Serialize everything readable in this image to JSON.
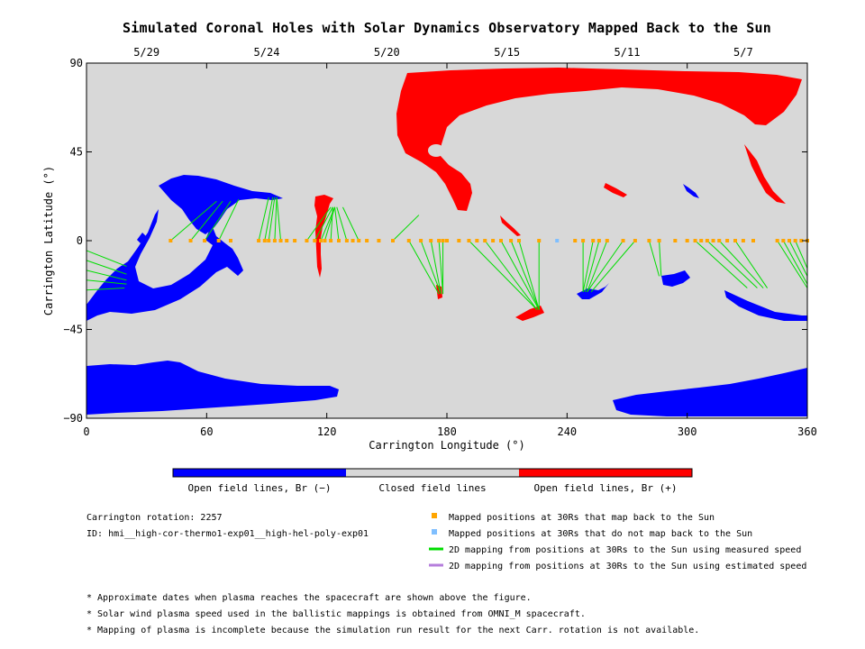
{
  "chart_data": {
    "type": "map",
    "title": "Simulated Coronal Holes with Solar Dynamics Observatory Mapped Back to the Sun",
    "xlabel": "Carrington Longitude (°)",
    "ylabel": "Carrington Latitude (°)",
    "xlim": [
      0,
      360
    ],
    "ylim": [
      -90,
      90
    ],
    "x_ticks": [
      0,
      60,
      120,
      180,
      240,
      300,
      360
    ],
    "y_ticks": [
      -90,
      -45,
      0,
      45,
      90
    ],
    "y_tick_labels": [
      "−90",
      "−45",
      "0",
      "45",
      "90"
    ],
    "top_dates": [
      {
        "label": "5/29",
        "lon": 30
      },
      {
        "label": "5/24",
        "lon": 90
      },
      {
        "label": "5/20",
        "lon": 150
      },
      {
        "label": "5/15",
        "lon": 210
      },
      {
        "label": "5/11",
        "lon": 270
      },
      {
        "label": "5/7",
        "lon": 328
      }
    ],
    "colors": {
      "open_negative": "#0000ff",
      "closed": "#d8d8d8",
      "open_positive": "#ff0000",
      "mapped": "#ffa500",
      "unmapped": "#7fbfff",
      "measured_line": "#00dd00",
      "estimated_line": "#b57edc"
    },
    "colorbar": [
      {
        "label": "Open field lines, Br (−)",
        "color": "#0000ff"
      },
      {
        "label": "Closed field lines",
        "color": "#d8d8d8"
      },
      {
        "label": "Open field lines, Br (+)",
        "color": "#ff0000"
      }
    ],
    "mapped_points_lon": [
      42,
      52,
      59,
      66,
      72,
      86,
      89,
      91,
      94,
      97,
      100,
      104,
      110,
      114,
      117,
      119,
      122,
      126,
      130,
      133,
      136,
      140,
      146,
      153,
      161,
      167,
      172,
      176,
      178,
      180,
      186,
      191,
      195,
      199,
      203,
      207,
      212,
      216,
      226,
      244,
      248,
      253,
      256,
      260,
      268,
      274,
      281,
      286,
      294,
      300,
      304,
      307,
      310,
      313,
      316,
      320,
      324,
      328,
      333,
      345,
      348,
      351,
      354,
      357,
      360
    ],
    "unmapped_points_lon": [
      235
    ],
    "mappings": [
      [
        42,
        0,
        65,
        20
      ],
      [
        52,
        0,
        68,
        20
      ],
      [
        59,
        0,
        72,
        20
      ],
      [
        66,
        0,
        76,
        21
      ],
      [
        86,
        0,
        91,
        22
      ],
      [
        89,
        0,
        93,
        22
      ],
      [
        91,
        0,
        94,
        22
      ],
      [
        94,
        0,
        95,
        22
      ],
      [
        97,
        0,
        95,
        22
      ],
      [
        110,
        0,
        122,
        17
      ],
      [
        114,
        0,
        123,
        17
      ],
      [
        117,
        0,
        124,
        17
      ],
      [
        119,
        0,
        124,
        17
      ],
      [
        122,
        0,
        123,
        17
      ],
      [
        126,
        0,
        124,
        17
      ],
      [
        130,
        0,
        125,
        17
      ],
      [
        136,
        0,
        128,
        17
      ],
      [
        153,
        0,
        166,
        13
      ],
      [
        161,
        0,
        176,
        -27
      ],
      [
        167,
        0,
        177,
        -27
      ],
      [
        172,
        0,
        177,
        -27
      ],
      [
        176,
        0,
        178,
        -27
      ],
      [
        178,
        0,
        178,
        -27
      ],
      [
        191,
        0,
        225,
        -35
      ],
      [
        199,
        0,
        225,
        -35
      ],
      [
        207,
        0,
        226,
        -35
      ],
      [
        212,
        0,
        226,
        -35
      ],
      [
        216,
        0,
        226,
        -35
      ],
      [
        226,
        0,
        226,
        -35
      ],
      [
        248,
        0,
        248,
        -26
      ],
      [
        253,
        0,
        248,
        -26
      ],
      [
        256,
        0,
        249,
        -26
      ],
      [
        260,
        0,
        250,
        -26
      ],
      [
        268,
        0,
        250,
        -26
      ],
      [
        274,
        0,
        252,
        -26
      ],
      [
        281,
        0,
        286,
        -18
      ],
      [
        286,
        0,
        287,
        -18
      ],
      [
        304,
        0,
        330,
        -24
      ],
      [
        310,
        0,
        335,
        -24
      ],
      [
        316,
        0,
        338,
        -24
      ],
      [
        324,
        0,
        340,
        -24
      ],
      [
        345,
        0,
        360,
        -24
      ],
      [
        348,
        0,
        360,
        -22
      ],
      [
        351,
        0,
        360,
        -18
      ],
      [
        354,
        0,
        360,
        -14
      ],
      [
        0,
        -5,
        20,
        -13
      ],
      [
        0,
        -10,
        20,
        -17
      ],
      [
        0,
        -15,
        20,
        -20
      ],
      [
        0,
        -20,
        20,
        -22
      ],
      [
        0,
        -25,
        19,
        -24
      ]
    ]
  },
  "legend": {
    "rotation": "Carrington rotation: 2257",
    "id": "ID: hmi__high-cor-thermo1-exp01__high-hel-poly-exp01",
    "mapped": "Mapped positions at 30Rs that map back to the Sun",
    "unmapped": "Mapped positions at 30Rs that do not map back to the Sun",
    "measured": "2D mapping from positions at 30Rs to the Sun using measured speed",
    "estimated": "2D mapping from positions at 30Rs to the Sun using estimated speed"
  },
  "notes": [
    "* Approximate dates when plasma reaches the spacecraft are shown above the figure.",
    "* Solar wind plasma speed used in the ballistic mappings is obtained from OMNI_M spacecraft.",
    "* Mapping of plasma is incomplete because the simulation run result for the next Carr. rotation is not available."
  ]
}
